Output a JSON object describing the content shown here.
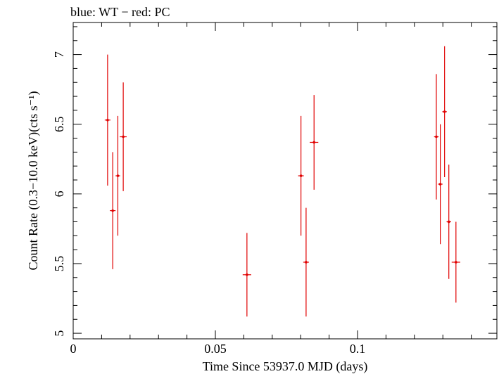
{
  "chart_data": {
    "type": "scatter",
    "title": "blue: WT − red: PC",
    "xlabel": "Time Since 53937.0 MJD (days)",
    "ylabel": "Count Rate (0.3−10.0 keV)(cts s⁻¹)",
    "xlim": [
      0,
      0.149
    ],
    "ylim": [
      4.96,
      7.23
    ],
    "x_ticks": [
      0,
      0.05,
      0.1
    ],
    "x_tick_labels": [
      "0",
      "0.05",
      "0.1"
    ],
    "y_ticks": [
      5,
      5.5,
      6,
      6.5,
      7
    ],
    "y_tick_labels": [
      "5",
      "5.5",
      "6",
      "6.5",
      "7"
    ],
    "grid": false,
    "series": [
      {
        "name": "PC",
        "color": "#e00000",
        "points": [
          {
            "x": 0.0121,
            "y": 6.53,
            "yerr_lo": 0.47,
            "yerr_hi": 0.47,
            "xerr": 0.001
          },
          {
            "x": 0.0139,
            "y": 5.88,
            "yerr_lo": 0.42,
            "yerr_hi": 0.42,
            "xerr": 0.001
          },
          {
            "x": 0.0157,
            "y": 6.13,
            "yerr_lo": 0.43,
            "yerr_hi": 0.43,
            "xerr": 0.0008
          },
          {
            "x": 0.0176,
            "y": 6.41,
            "yerr_lo": 0.39,
            "yerr_hi": 0.39,
            "xerr": 0.0012
          },
          {
            "x": 0.0611,
            "y": 5.42,
            "yerr_lo": 0.3,
            "yerr_hi": 0.3,
            "xerr": 0.0015
          },
          {
            "x": 0.0801,
            "y": 6.13,
            "yerr_lo": 0.43,
            "yerr_hi": 0.43,
            "xerr": 0.001
          },
          {
            "x": 0.0819,
            "y": 5.51,
            "yerr_lo": 0.39,
            "yerr_hi": 0.39,
            "xerr": 0.001
          },
          {
            "x": 0.0847,
            "y": 6.37,
            "yerr_lo": 0.34,
            "yerr_hi": 0.34,
            "xerr": 0.0015
          },
          {
            "x": 0.1277,
            "y": 6.41,
            "yerr_lo": 0.45,
            "yerr_hi": 0.45,
            "xerr": 0.0008
          },
          {
            "x": 0.1291,
            "y": 6.07,
            "yerr_lo": 0.43,
            "yerr_hi": 0.43,
            "xerr": 0.0008
          },
          {
            "x": 0.1306,
            "y": 6.59,
            "yerr_lo": 0.47,
            "yerr_hi": 0.47,
            "xerr": 0.0008
          },
          {
            "x": 0.1321,
            "y": 5.8,
            "yerr_lo": 0.41,
            "yerr_hi": 0.41,
            "xerr": 0.0008
          },
          {
            "x": 0.1346,
            "y": 5.51,
            "yerr_lo": 0.29,
            "yerr_hi": 0.29,
            "xerr": 0.0015
          }
        ]
      }
    ]
  }
}
